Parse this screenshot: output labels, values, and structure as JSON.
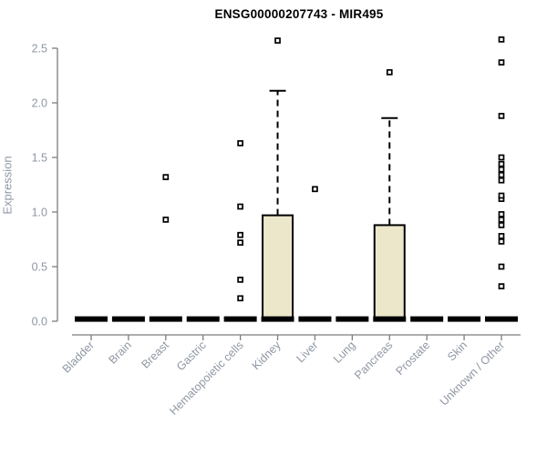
{
  "chart_data": {
    "type": "box",
    "title": "ENSG00000207743 - MIR495",
    "xlabel": "",
    "ylabel": "Expression",
    "ylim": [
      -0.1,
      2.72
    ],
    "yticks": [
      0.0,
      0.5,
      1.0,
      1.5,
      2.0,
      2.5
    ],
    "grid": false,
    "legend_position": "none",
    "marker": "open-square",
    "categories": [
      "Bladder",
      "Brain",
      "Breast",
      "Gastric",
      "Hematopoietic cells",
      "Kidney",
      "Liver",
      "Lung",
      "Pancreas",
      "Prostate",
      "Skin",
      "Unknown / Other"
    ],
    "series": [
      {
        "name": "Bladder",
        "q1": 0.0,
        "median": 0.02,
        "q3": 0.0,
        "whisker_low": 0.0,
        "whisker_high": 0.0,
        "outliers": []
      },
      {
        "name": "Brain",
        "q1": 0.0,
        "median": 0.02,
        "q3": 0.0,
        "whisker_low": 0.0,
        "whisker_high": 0.0,
        "outliers": []
      },
      {
        "name": "Breast",
        "q1": 0.0,
        "median": 0.02,
        "q3": 0.0,
        "whisker_low": 0.0,
        "whisker_high": 0.0,
        "outliers": [
          0.93,
          1.32
        ]
      },
      {
        "name": "Gastric",
        "q1": 0.0,
        "median": 0.02,
        "q3": 0.0,
        "whisker_low": 0.0,
        "whisker_high": 0.0,
        "outliers": []
      },
      {
        "name": "Hematopoietic cells",
        "q1": 0.0,
        "median": 0.02,
        "q3": 0.0,
        "whisker_low": 0.0,
        "whisker_high": 0.0,
        "outliers": [
          0.21,
          0.38,
          0.72,
          0.79,
          1.05,
          1.63
        ]
      },
      {
        "name": "Kidney",
        "q1": 0.02,
        "median": 0.02,
        "q3": 0.97,
        "whisker_low": 0.0,
        "whisker_high": 2.11,
        "outliers": [
          2.57
        ]
      },
      {
        "name": "Liver",
        "q1": 0.0,
        "median": 0.02,
        "q3": 0.0,
        "whisker_low": 0.0,
        "whisker_high": 0.0,
        "outliers": [
          1.21
        ]
      },
      {
        "name": "Lung",
        "q1": 0.0,
        "median": 0.02,
        "q3": 0.0,
        "whisker_low": 0.0,
        "whisker_high": 0.0,
        "outliers": []
      },
      {
        "name": "Pancreas",
        "q1": 0.02,
        "median": 0.02,
        "q3": 0.88,
        "whisker_low": 0.0,
        "whisker_high": 1.86,
        "outliers": [
          2.28
        ]
      },
      {
        "name": "Prostate",
        "q1": 0.0,
        "median": 0.02,
        "q3": 0.0,
        "whisker_low": 0.0,
        "whisker_high": 0.0,
        "outliers": []
      },
      {
        "name": "Skin",
        "q1": 0.0,
        "median": 0.02,
        "q3": 0.0,
        "whisker_low": 0.0,
        "whisker_high": 0.0,
        "outliers": []
      },
      {
        "name": "Unknown / Other",
        "q1": 0.0,
        "median": 0.02,
        "q3": 0.0,
        "whisker_low": 0.0,
        "whisker_high": 0.0,
        "outliers": [
          0.32,
          0.5,
          0.73,
          0.78,
          0.88,
          0.93,
          0.98,
          1.12,
          1.15,
          1.29,
          1.34,
          1.39,
          1.44,
          1.5,
          1.88,
          2.37,
          2.58
        ]
      }
    ],
    "colors": {
      "box_fill": "#ece7cb",
      "box_stroke": "#000000",
      "median": "#000000",
      "outlier": "#000000",
      "axis_line": "#7d7d7d",
      "tick_text": "#8f97a3",
      "title_text": "#000000",
      "background": "#ffffff"
    }
  }
}
